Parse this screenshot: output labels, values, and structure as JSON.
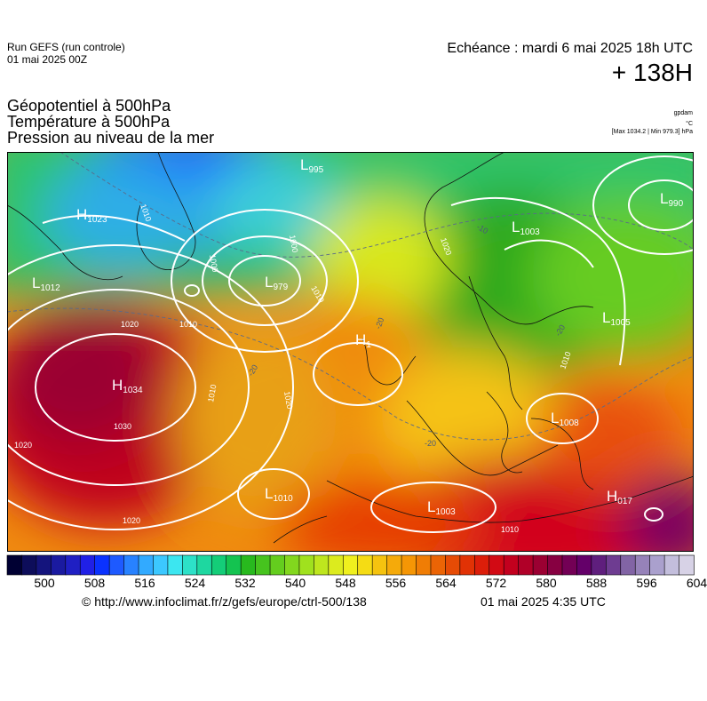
{
  "header": {
    "run_line1": "Run GEFS (run controle)",
    "run_line2": "01 mai 2025 00Z",
    "echeance": "Echéance : mardi 6 mai 2025 18h UTC",
    "lead": "+ 138H"
  },
  "titles": {
    "line1": "Géopotentiel à 500hPa",
    "line2": "Température à 500hPa",
    "line3": "Pression au niveau de la mer"
  },
  "units": {
    "geopot": "gpdam",
    "temp": "°C",
    "pressure": "[Max 1034.2 | Min 979.3] hPa"
  },
  "map": {
    "pressure_centers": [
      {
        "type": "H",
        "value": "1023"
      },
      {
        "type": "L",
        "value": "995"
      },
      {
        "type": "L",
        "value": "990"
      },
      {
        "type": "L",
        "value": "1003"
      },
      {
        "type": "L",
        "value": "1012"
      },
      {
        "type": "L",
        "value": "979"
      },
      {
        "type": "H",
        "value": "1"
      },
      {
        "type": "L",
        "value": "1005"
      },
      {
        "type": "H",
        "value": "1034"
      },
      {
        "type": "L",
        "value": "1008"
      },
      {
        "type": "L",
        "value": "1010"
      },
      {
        "type": "L",
        "value": "1003"
      },
      {
        "type": "H",
        "value": "017"
      }
    ],
    "isobar_labels": [
      "1010",
      "1000",
      "1000",
      "1010",
      "1020",
      "1010",
      "1020",
      "1030",
      "1020",
      "1020",
      "1020",
      "1010",
      "1010",
      "1010"
    ],
    "temp_labels": [
      "-20",
      "-20",
      "-20",
      "-20",
      "-10"
    ]
  },
  "colorbar": {
    "colors": [
      "#000033",
      "#0d0d5a",
      "#14147d",
      "#1a1aa0",
      "#1f1fc3",
      "#2020e6",
      "#0a32ff",
      "#1e5aff",
      "#2882ff",
      "#32aaff",
      "#3cc8ff",
      "#3ce6f0",
      "#2de1c8",
      "#1ed7a0",
      "#14cd78",
      "#14c350",
      "#28b91e",
      "#46c31e",
      "#64cd1e",
      "#82d71e",
      "#a0e11e",
      "#bee61e",
      "#dceb1e",
      "#f0f01e",
      "#f5dc14",
      "#f5c30f",
      "#f5aa0a",
      "#f59605",
      "#f07d05",
      "#eb6405",
      "#e64b05",
      "#e13205",
      "#dc1e0a",
      "#d20a14",
      "#c3001e",
      "#b00028",
      "#9b0032",
      "#870041",
      "#730055",
      "#640069",
      "#5f1e7d",
      "#6e3c91",
      "#8264a5",
      "#9682b9",
      "#aaa0cd",
      "#c3bedc",
      "#d7d2e6"
    ],
    "ticks": [
      "500",
      "508",
      "516",
      "524",
      "532",
      "540",
      "548",
      "556",
      "564",
      "572",
      "580",
      "588",
      "596",
      "604"
    ]
  },
  "footer": {
    "url": "© http://www.infoclimat.fr/z/gefs/europe/ctrl-500/138",
    "date": "01 mai 2025  4:35 UTC"
  }
}
